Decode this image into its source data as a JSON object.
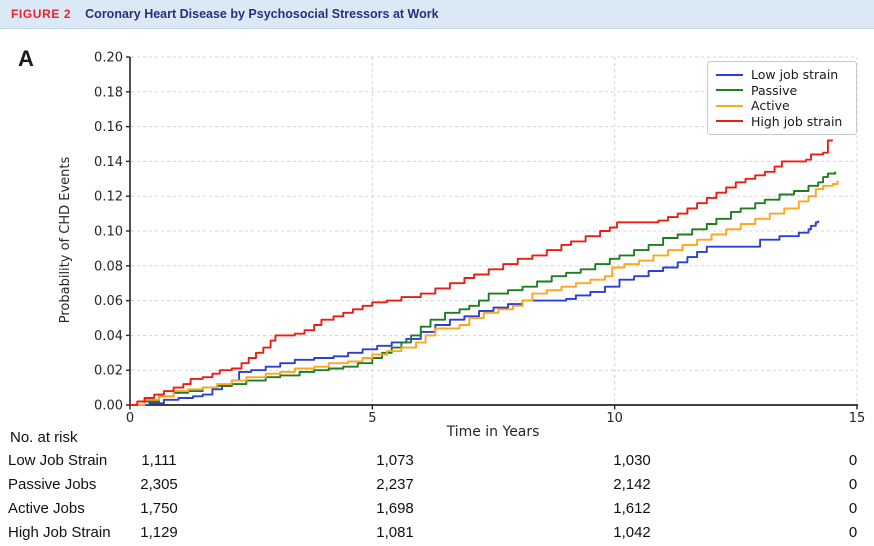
{
  "figure_header": {
    "tag": "FIGURE 2",
    "title": "Coronary Heart Disease by Psychosocial Stressors at Work"
  },
  "panel_label": "A",
  "chart_data": {
    "type": "line",
    "subtype": "step",
    "xlabel": "Time in Years",
    "ylabel": "Probability of CHD Events",
    "xlim": [
      0,
      15
    ],
    "ylim": [
      0,
      0.2
    ],
    "xticks": [
      0,
      5,
      10,
      15
    ],
    "ytick_step": 0.02,
    "grid": true,
    "legend_position": "top-right",
    "axis_color": "#262626",
    "grid_color": "#d4d4d4",
    "series": [
      {
        "name": "Low job strain",
        "color": "#2a3fd4",
        "points": [
          [
            0,
            0
          ],
          [
            0.4,
            0.001
          ],
          [
            0.7,
            0.003
          ],
          [
            1.0,
            0.004
          ],
          [
            1.3,
            0.005
          ],
          [
            1.5,
            0.006
          ],
          [
            1.7,
            0.009
          ],
          [
            1.9,
            0.011
          ],
          [
            2.1,
            0.014
          ],
          [
            2.25,
            0.019
          ],
          [
            2.5,
            0.02
          ],
          [
            2.8,
            0.022
          ],
          [
            3.1,
            0.024
          ],
          [
            3.4,
            0.026
          ],
          [
            3.8,
            0.027
          ],
          [
            4.2,
            0.028
          ],
          [
            4.5,
            0.03
          ],
          [
            4.8,
            0.032
          ],
          [
            5.1,
            0.034
          ],
          [
            5.4,
            0.036
          ],
          [
            5.7,
            0.038
          ],
          [
            6.0,
            0.042
          ],
          [
            6.3,
            0.046
          ],
          [
            6.6,
            0.049
          ],
          [
            6.9,
            0.051
          ],
          [
            7.2,
            0.054
          ],
          [
            7.5,
            0.056
          ],
          [
            7.8,
            0.058
          ],
          [
            8.1,
            0.06
          ],
          [
            9.0,
            0.061
          ],
          [
            9.2,
            0.063
          ],
          [
            9.5,
            0.065
          ],
          [
            9.8,
            0.068
          ],
          [
            10.1,
            0.072
          ],
          [
            10.4,
            0.074
          ],
          [
            10.7,
            0.077
          ],
          [
            11.0,
            0.079
          ],
          [
            11.3,
            0.082
          ],
          [
            11.5,
            0.085
          ],
          [
            11.7,
            0.088
          ],
          [
            11.9,
            0.091
          ],
          [
            12.8,
            0.091
          ],
          [
            13.0,
            0.095
          ],
          [
            13.4,
            0.097
          ],
          [
            13.8,
            0.099
          ],
          [
            14.0,
            0.101
          ],
          [
            14.05,
            0.103
          ],
          [
            14.15,
            0.105
          ],
          [
            14.2,
            0.106
          ]
        ]
      },
      {
        "name": "Passive",
        "color": "#1f7d1f",
        "points": [
          [
            0,
            0
          ],
          [
            0.3,
            0.002
          ],
          [
            0.6,
            0.005
          ],
          [
            0.9,
            0.007
          ],
          [
            1.2,
            0.008
          ],
          [
            1.5,
            0.01
          ],
          [
            1.8,
            0.011
          ],
          [
            2.1,
            0.012
          ],
          [
            2.4,
            0.014
          ],
          [
            2.8,
            0.016
          ],
          [
            3.1,
            0.017
          ],
          [
            3.5,
            0.019
          ],
          [
            3.8,
            0.02
          ],
          [
            4.1,
            0.021
          ],
          [
            4.4,
            0.022
          ],
          [
            4.7,
            0.024
          ],
          [
            5.0,
            0.027
          ],
          [
            5.2,
            0.03
          ],
          [
            5.4,
            0.033
          ],
          [
            5.6,
            0.036
          ],
          [
            5.8,
            0.04
          ],
          [
            6.0,
            0.045
          ],
          [
            6.2,
            0.049
          ],
          [
            6.5,
            0.053
          ],
          [
            6.8,
            0.055
          ],
          [
            7.0,
            0.057
          ],
          [
            7.2,
            0.06
          ],
          [
            7.4,
            0.064
          ],
          [
            7.8,
            0.066
          ],
          [
            8.1,
            0.068
          ],
          [
            8.4,
            0.071
          ],
          [
            8.7,
            0.074
          ],
          [
            9.0,
            0.076
          ],
          [
            9.3,
            0.078
          ],
          [
            9.6,
            0.081
          ],
          [
            9.9,
            0.084
          ],
          [
            10.1,
            0.086
          ],
          [
            10.4,
            0.089
          ],
          [
            10.7,
            0.092
          ],
          [
            11.0,
            0.096
          ],
          [
            11.3,
            0.098
          ],
          [
            11.6,
            0.101
          ],
          [
            11.9,
            0.104
          ],
          [
            12.1,
            0.107
          ],
          [
            12.4,
            0.111
          ],
          [
            12.6,
            0.113
          ],
          [
            12.9,
            0.116
          ],
          [
            13.1,
            0.118
          ],
          [
            13.4,
            0.121
          ],
          [
            13.7,
            0.123
          ],
          [
            14.0,
            0.126
          ],
          [
            14.2,
            0.128
          ],
          [
            14.3,
            0.131
          ],
          [
            14.4,
            0.133
          ],
          [
            14.55,
            0.134
          ]
        ]
      },
      {
        "name": "Active",
        "color": "#ffa51e",
        "points": [
          [
            0,
            0
          ],
          [
            0.3,
            0.003
          ],
          [
            0.6,
            0.005
          ],
          [
            0.9,
            0.008
          ],
          [
            1.2,
            0.009
          ],
          [
            1.5,
            0.01
          ],
          [
            1.8,
            0.012
          ],
          [
            2.1,
            0.014
          ],
          [
            2.4,
            0.016
          ],
          [
            2.8,
            0.018
          ],
          [
            3.1,
            0.019
          ],
          [
            3.4,
            0.021
          ],
          [
            3.8,
            0.022
          ],
          [
            4.1,
            0.024
          ],
          [
            4.5,
            0.025
          ],
          [
            4.8,
            0.027
          ],
          [
            5.0,
            0.029
          ],
          [
            5.3,
            0.031
          ],
          [
            5.6,
            0.033
          ],
          [
            5.9,
            0.036
          ],
          [
            6.1,
            0.04
          ],
          [
            6.3,
            0.044
          ],
          [
            6.8,
            0.046
          ],
          [
            7.0,
            0.05
          ],
          [
            7.3,
            0.053
          ],
          [
            7.6,
            0.055
          ],
          [
            7.9,
            0.057
          ],
          [
            8.1,
            0.06
          ],
          [
            8.3,
            0.064
          ],
          [
            8.6,
            0.066
          ],
          [
            8.9,
            0.068
          ],
          [
            9.2,
            0.07
          ],
          [
            9.5,
            0.072
          ],
          [
            9.8,
            0.074
          ],
          [
            9.95,
            0.079
          ],
          [
            10.2,
            0.081
          ],
          [
            10.5,
            0.083
          ],
          [
            10.8,
            0.086
          ],
          [
            11.1,
            0.089
          ],
          [
            11.4,
            0.092
          ],
          [
            11.7,
            0.095
          ],
          [
            12.0,
            0.098
          ],
          [
            12.3,
            0.101
          ],
          [
            12.6,
            0.104
          ],
          [
            12.9,
            0.107
          ],
          [
            13.2,
            0.11
          ],
          [
            13.5,
            0.113
          ],
          [
            13.8,
            0.117
          ],
          [
            14.0,
            0.12
          ],
          [
            14.15,
            0.124
          ],
          [
            14.3,
            0.126
          ],
          [
            14.5,
            0.127
          ],
          [
            14.6,
            0.129
          ]
        ]
      },
      {
        "name": "High job strain",
        "color": "#ea1e14",
        "points": [
          [
            0,
            0
          ],
          [
            0.15,
            0.002
          ],
          [
            0.3,
            0.004
          ],
          [
            0.5,
            0.006
          ],
          [
            0.7,
            0.008
          ],
          [
            0.9,
            0.01
          ],
          [
            1.1,
            0.012
          ],
          [
            1.25,
            0.015
          ],
          [
            1.5,
            0.016
          ],
          [
            1.7,
            0.018
          ],
          [
            1.85,
            0.02
          ],
          [
            2.1,
            0.021
          ],
          [
            2.3,
            0.024
          ],
          [
            2.45,
            0.027
          ],
          [
            2.6,
            0.03
          ],
          [
            2.75,
            0.033
          ],
          [
            2.9,
            0.037
          ],
          [
            3.0,
            0.04
          ],
          [
            3.4,
            0.041
          ],
          [
            3.6,
            0.043
          ],
          [
            3.8,
            0.046
          ],
          [
            3.95,
            0.049
          ],
          [
            4.2,
            0.051
          ],
          [
            4.4,
            0.053
          ],
          [
            4.6,
            0.055
          ],
          [
            4.8,
            0.057
          ],
          [
            5.0,
            0.059
          ],
          [
            5.3,
            0.06
          ],
          [
            5.6,
            0.062
          ],
          [
            6.0,
            0.064
          ],
          [
            6.3,
            0.067
          ],
          [
            6.6,
            0.07
          ],
          [
            6.9,
            0.073
          ],
          [
            7.1,
            0.075
          ],
          [
            7.4,
            0.078
          ],
          [
            7.7,
            0.081
          ],
          [
            8.0,
            0.084
          ],
          [
            8.3,
            0.086
          ],
          [
            8.6,
            0.089
          ],
          [
            8.9,
            0.092
          ],
          [
            9.1,
            0.094
          ],
          [
            9.4,
            0.097
          ],
          [
            9.7,
            0.1
          ],
          [
            9.9,
            0.102
          ],
          [
            10.05,
            0.105
          ],
          [
            10.9,
            0.106
          ],
          [
            11.1,
            0.108
          ],
          [
            11.3,
            0.11
          ],
          [
            11.5,
            0.113
          ],
          [
            11.7,
            0.116
          ],
          [
            11.9,
            0.119
          ],
          [
            12.1,
            0.122
          ],
          [
            12.3,
            0.125
          ],
          [
            12.5,
            0.128
          ],
          [
            12.7,
            0.13
          ],
          [
            12.9,
            0.132
          ],
          [
            13.1,
            0.134
          ],
          [
            13.3,
            0.137
          ],
          [
            13.45,
            0.14
          ],
          [
            13.95,
            0.141
          ],
          [
            14.05,
            0.144
          ],
          [
            14.3,
            0.145
          ],
          [
            14.4,
            0.152
          ],
          [
            14.5,
            0.152
          ]
        ]
      }
    ]
  },
  "risk_table": {
    "header": "No. at risk",
    "time_points": [
      "0",
      "5",
      "10",
      "15"
    ],
    "rows": [
      {
        "label": "Low Job Strain",
        "values": [
          "1,111",
          "1,073",
          "1,030",
          "0"
        ]
      },
      {
        "label": "Passive Jobs",
        "values": [
          "2,305",
          "2,237",
          "2,142",
          "0"
        ]
      },
      {
        "label": "Active Jobs",
        "values": [
          "1,750",
          "1,698",
          "1,612",
          "0"
        ]
      },
      {
        "label": "High Job Strain",
        "values": [
          "1,129",
          "1,081",
          "1,042",
          "0"
        ]
      }
    ]
  }
}
